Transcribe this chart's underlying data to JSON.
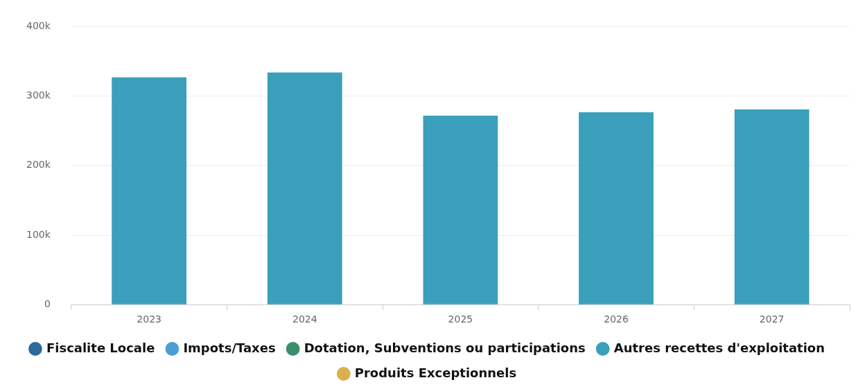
{
  "chart_data": {
    "type": "bar",
    "categories": [
      "2023",
      "2024",
      "2025",
      "2026",
      "2027"
    ],
    "stacked": true,
    "series": [
      {
        "name": "Fiscalite Locale",
        "color": "#2c6a9e",
        "values": [
          null,
          null,
          null,
          null,
          null
        ]
      },
      {
        "name": "Impots/Taxes",
        "color": "#4a9ed4",
        "values": [
          null,
          null,
          null,
          null,
          null
        ]
      },
      {
        "name": "Dotation, Subventions ou participations",
        "color": "#3a8f6a",
        "values": [
          null,
          null,
          null,
          null,
          null
        ]
      },
      {
        "name": "Autres recettes d'exploitation",
        "color": "#3a9fbb",
        "values": [
          327000,
          334000,
          272000,
          277000,
          281000
        ]
      },
      {
        "name": "Produits Exceptionnels",
        "color": "#d9b04a",
        "values": [
          null,
          null,
          null,
          null,
          null
        ]
      }
    ],
    "ylim": [
      0,
      400000
    ],
    "yticks": [
      {
        "value": 0,
        "label": "0"
      },
      {
        "value": 100000,
        "label": "100k"
      },
      {
        "value": 200000,
        "label": "200k"
      },
      {
        "value": 300000,
        "label": "300k"
      },
      {
        "value": 400000,
        "label": "400k"
      }
    ],
    "grid": "y",
    "legend": "bottom",
    "marker": "circle"
  }
}
